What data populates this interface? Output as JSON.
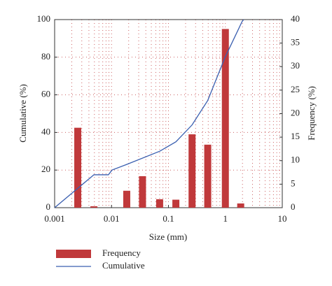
{
  "chart_data": {
    "type": "bar-line",
    "x_label": "Size (mm)",
    "y_label": "Cumulative (%)",
    "y2_label": "Frequency (%)",
    "xlim": [
      0.001,
      10
    ],
    "xticks": [
      0.001,
      0.01,
      0.1,
      1,
      10
    ],
    "xscale": "log",
    "ylim": [
      0,
      100
    ],
    "yticks": [
      0,
      20,
      40,
      60,
      80,
      100
    ],
    "y2lim": [
      0,
      40
    ],
    "y2ticks": [
      0,
      5,
      10,
      15,
      20,
      25,
      30,
      35,
      40
    ],
    "grid": true,
    "series": [
      {
        "name": "Frequency",
        "type": "bar",
        "axis": "y2",
        "color": "#c0393b",
        "x": [
          0.00255,
          0.0049,
          0.0185,
          0.035,
          0.07,
          0.135,
          0.26,
          0.49,
          1,
          1.86
        ],
        "values": [
          17,
          0.3,
          3.6,
          6.7,
          1.8,
          1.7,
          15.6,
          13.4,
          38,
          0.9
        ]
      },
      {
        "name": "Cumulative",
        "type": "line",
        "axis": "y",
        "color": "#3a5fb0",
        "x": [
          0.001,
          0.0049,
          0.0088,
          0.0102,
          0.0185,
          0.07,
          0.135,
          0.26,
          0.49,
          0.99,
          1.97,
          2.1
        ],
        "values": [
          0,
          17.5,
          17.5,
          20,
          23,
          30,
          35,
          44,
          57,
          80,
          99,
          100
        ]
      }
    ]
  }
}
